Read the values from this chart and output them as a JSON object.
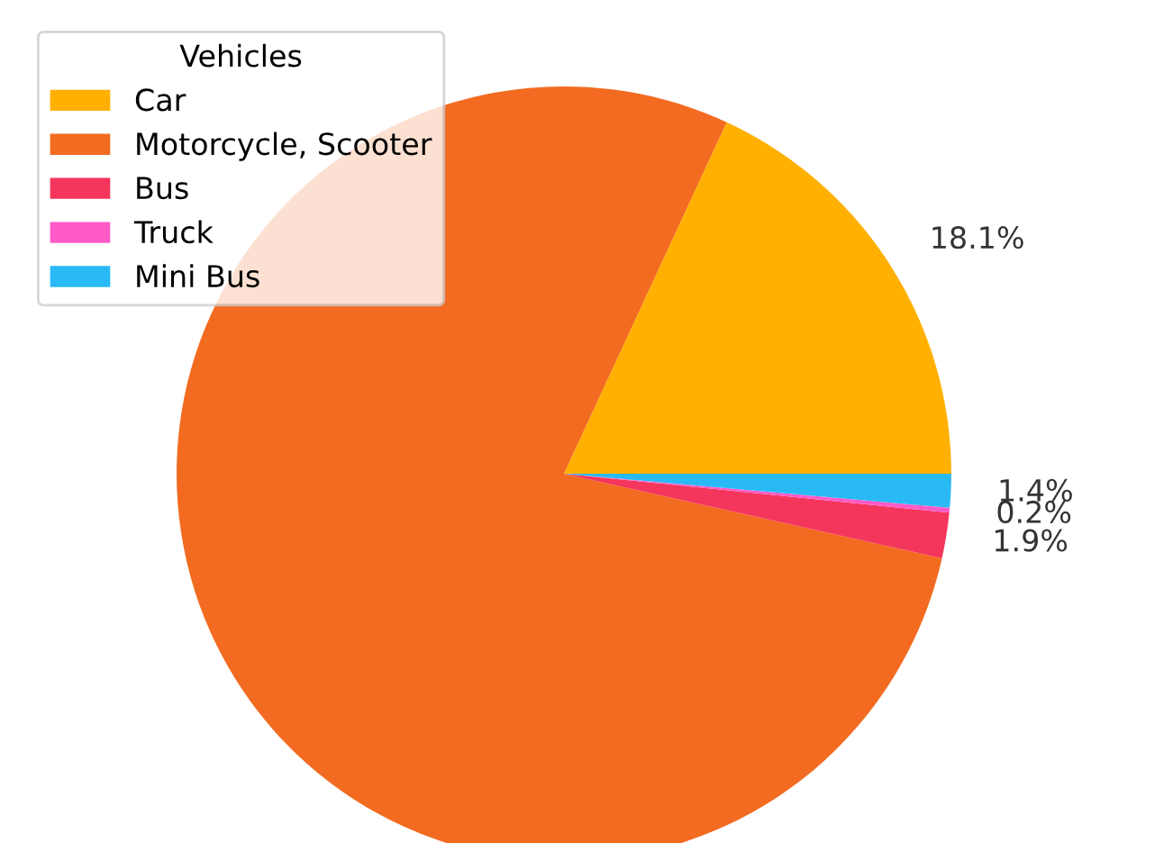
{
  "chart_data": {
    "type": "pie",
    "legend_title": "Vehicles",
    "legend": "top left",
    "categories": [
      "Car",
      "Motorcycle, Scooter",
      "Bus",
      "Truck",
      "Mini Bus"
    ],
    "values": [
      18.1,
      78.4,
      1.9,
      0.2,
      1.4
    ],
    "value_labels": [
      "18.1%",
      null,
      "1.9%",
      "0.2%",
      "1.4%"
    ],
    "colors": [
      "#ffb000",
      "#f26b21",
      "#f5365c",
      "#ff5bc8",
      "#29baf5"
    ]
  }
}
